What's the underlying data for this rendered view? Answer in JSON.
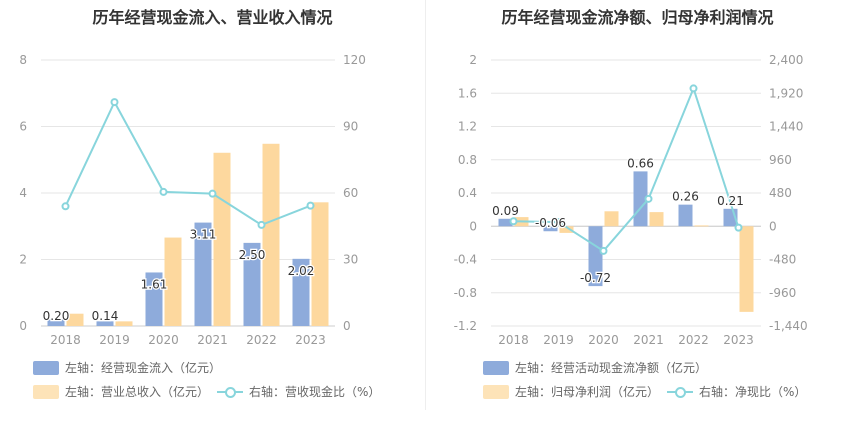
{
  "colors": {
    "blue": "#8eabdb",
    "orange": "#fdd89e",
    "line": "#88d5dc",
    "grid": "#e6e6e6",
    "axis": "#999999"
  },
  "chart_data": [
    {
      "type": "bar",
      "title": "历年经营现金流入、营业收入情况",
      "categories": [
        "2018",
        "2019",
        "2020",
        "2021",
        "2022",
        "2023"
      ],
      "left_axis": {
        "ylim": [
          0,
          8
        ],
        "ticks": [
          "0",
          "2",
          "4",
          "6",
          "8"
        ]
      },
      "right_axis": {
        "ylim": [
          0,
          120
        ],
        "ticks": [
          "0",
          "30",
          "60",
          "90",
          "120"
        ]
      },
      "series": [
        {
          "name": "左轴：经营现金流入（亿元）",
          "type": "bar",
          "axis": "left",
          "values": [
            0.2,
            0.14,
            1.61,
            3.11,
            2.5,
            2.02
          ],
          "labels": [
            "0.20",
            "0.14",
            "1.61",
            "3.11",
            "2.50",
            "2.02"
          ]
        },
        {
          "name": "左轴：营业总收入（亿元）",
          "type": "bar",
          "axis": "left",
          "values": [
            0.37,
            0.14,
            2.66,
            5.21,
            5.48,
            3.72
          ]
        },
        {
          "name": "右轴：营收现金比（%）",
          "type": "line",
          "axis": "right",
          "values": [
            54,
            101,
            60.5,
            59.7,
            45.6,
            54.3
          ]
        }
      ],
      "legend": [
        "左轴：经营现金流入（亿元）",
        "左轴：营业总收入（亿元）",
        "右轴：营收现金比（%）"
      ]
    },
    {
      "type": "bar",
      "title": "历年经营现金流净额、归母净利润情况",
      "categories": [
        "2018",
        "2019",
        "2020",
        "2021",
        "2022",
        "2023"
      ],
      "left_axis": {
        "ylim": [
          -1.2,
          2
        ],
        "ticks": [
          "-1.2",
          "-0.8",
          "-0.4",
          "0",
          "0.4",
          "0.8",
          "1.2",
          "1.6",
          "2"
        ]
      },
      "right_axis": {
        "ylim": [
          -1440,
          2400
        ],
        "ticks": [
          "-1,440",
          "-960",
          "-480",
          "0",
          "480",
          "960",
          "1,440",
          "1,920",
          "2,400"
        ]
      },
      "series": [
        {
          "name": "左轴：经营活动现金流净额（亿元）",
          "type": "bar",
          "axis": "left",
          "values": [
            0.09,
            -0.06,
            -0.72,
            0.66,
            0.26,
            0.21
          ],
          "labels": [
            "0.09",
            "-0.06",
            "-0.72",
            "0.66",
            "0.26",
            "0.21"
          ]
        },
        {
          "name": "左轴：归母净利润（亿元）",
          "type": "bar",
          "axis": "left",
          "values": [
            0.11,
            -0.08,
            0.18,
            0.17,
            0.01,
            -1.03
          ]
        },
        {
          "name": "右轴：净现比（%）",
          "type": "line",
          "axis": "right",
          "values": [
            72,
            60,
            -356,
            396,
            1990,
            -20
          ]
        }
      ],
      "legend": [
        "左轴：经营活动现金流净额（亿元）",
        "左轴：归母净利润（亿元）",
        "右轴：净现比（%）"
      ]
    }
  ]
}
